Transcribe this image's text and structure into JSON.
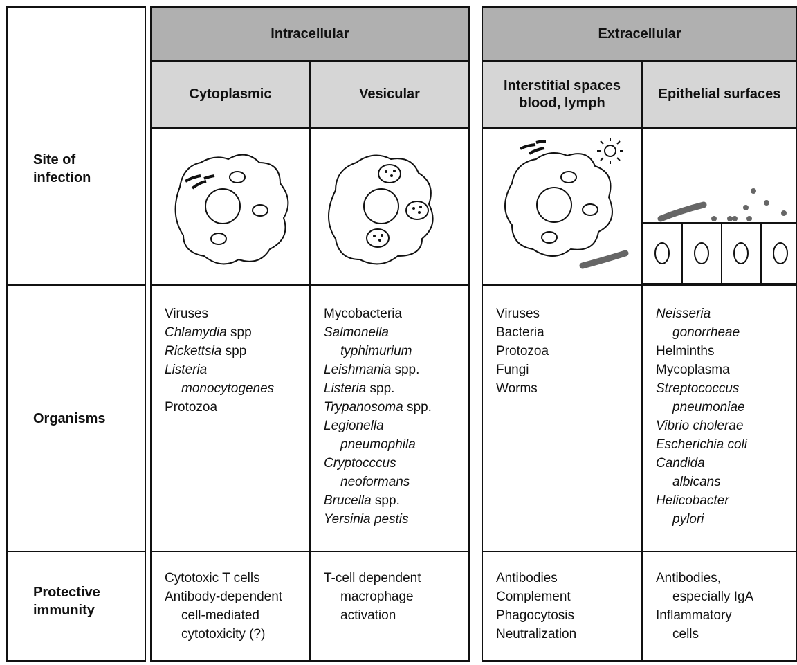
{
  "row_labels": [
    "Site of infection",
    "Organisms",
    "Protective immunity"
  ],
  "groups": [
    {
      "title": "Intracellular",
      "columns": [
        {
          "title": "Cytoplasmic",
          "organisms": [
            {
              "segments": [
                {
                  "text": "Viruses"
                }
              ]
            },
            {
              "segments": [
                {
                  "text": "Chlamydia",
                  "italic": true
                },
                {
                  "text": " spp"
                }
              ]
            },
            {
              "segments": [
                {
                  "text": "Rickettsia",
                  "italic": true
                },
                {
                  "text": " spp"
                }
              ]
            },
            {
              "segments": [
                {
                  "text": "Listeria",
                  "italic": true
                }
              ]
            },
            {
              "indent": true,
              "segments": [
                {
                  "text": "monocytogenes",
                  "italic": true
                }
              ]
            },
            {
              "segments": [
                {
                  "text": "Protozoa"
                }
              ]
            }
          ],
          "immunity": [
            {
              "segments": [
                {
                  "text": "Cytotoxic T cells"
                }
              ]
            },
            {
              "segments": [
                {
                  "text": "Antibody-dependent"
                }
              ]
            },
            {
              "indent": true,
              "segments": [
                {
                  "text": "cell-mediated"
                }
              ]
            },
            {
              "indent": true,
              "segments": [
                {
                  "text": "cytotoxicity (?)"
                }
              ]
            }
          ]
        },
        {
          "title": "Vesicular",
          "organisms": [
            {
              "segments": [
                {
                  "text": "Mycobacteria"
                }
              ]
            },
            {
              "segments": [
                {
                  "text": "Salmonella",
                  "italic": true
                }
              ]
            },
            {
              "indent": true,
              "segments": [
                {
                  "text": "typhimurium",
                  "italic": true
                }
              ]
            },
            {
              "segments": [
                {
                  "text": "Leishmania",
                  "italic": true
                },
                {
                  "text": " spp."
                }
              ]
            },
            {
              "segments": [
                {
                  "text": "Listeria",
                  "italic": true
                },
                {
                  "text": " spp."
                }
              ]
            },
            {
              "segments": [
                {
                  "text": "Trypanosoma",
                  "italic": true
                },
                {
                  "text": " spp."
                }
              ]
            },
            {
              "segments": [
                {
                  "text": "Legionella",
                  "italic": true
                }
              ]
            },
            {
              "indent": true,
              "segments": [
                {
                  "text": "pneumophila",
                  "italic": true
                }
              ]
            },
            {
              "segments": [
                {
                  "text": "Cryptocccus",
                  "italic": true
                }
              ]
            },
            {
              "indent": true,
              "segments": [
                {
                  "text": "neoformans",
                  "italic": true
                }
              ]
            },
            {
              "segments": [
                {
                  "text": "Brucella",
                  "italic": true
                },
                {
                  "text": " spp."
                }
              ]
            },
            {
              "segments": [
                {
                  "text": "Yersinia pestis",
                  "italic": true
                }
              ]
            }
          ],
          "immunity": [
            {
              "segments": [
                {
                  "text": "T-cell dependent"
                }
              ]
            },
            {
              "indent": true,
              "segments": [
                {
                  "text": "macrophage"
                }
              ]
            },
            {
              "indent": true,
              "segments": [
                {
                  "text": "activation"
                }
              ]
            }
          ]
        }
      ]
    },
    {
      "title": "Extracellular",
      "columns": [
        {
          "title": "Interstitial spaces blood, lymph",
          "organisms": [
            {
              "segments": [
                {
                  "text": "Viruses"
                }
              ]
            },
            {
              "segments": [
                {
                  "text": "Bacteria"
                }
              ]
            },
            {
              "segments": [
                {
                  "text": "Protozoa"
                }
              ]
            },
            {
              "segments": [
                {
                  "text": "Fungi"
                }
              ]
            },
            {
              "segments": [
                {
                  "text": "Worms"
                }
              ]
            }
          ],
          "immunity": [
            {
              "segments": [
                {
                  "text": "Antibodies"
                }
              ]
            },
            {
              "segments": [
                {
                  "text": "Complement"
                }
              ]
            },
            {
              "segments": [
                {
                  "text": "Phagocytosis"
                }
              ]
            },
            {
              "segments": [
                {
                  "text": "Neutralization"
                }
              ]
            }
          ]
        },
        {
          "title": "Epithelial surfaces",
          "organisms": [
            {
              "segments": [
                {
                  "text": "Neisseria",
                  "italic": true
                }
              ]
            },
            {
              "indent": true,
              "segments": [
                {
                  "text": "gonorrheae",
                  "italic": true
                }
              ]
            },
            {
              "segments": [
                {
                  "text": "Helminths"
                }
              ]
            },
            {
              "segments": [
                {
                  "text": "Mycoplasma"
                }
              ]
            },
            {
              "segments": [
                {
                  "text": "Streptococcus",
                  "italic": true
                }
              ]
            },
            {
              "indent": true,
              "segments": [
                {
                  "text": "pneumoniae",
                  "italic": true
                }
              ]
            },
            {
              "segments": [
                {
                  "text": "Vibrio cholerae",
                  "italic": true
                }
              ]
            },
            {
              "segments": [
                {
                  "text": "Escherichia coli",
                  "italic": true
                }
              ]
            },
            {
              "segments": [
                {
                  "text": "Candida",
                  "italic": true
                }
              ]
            },
            {
              "indent": true,
              "segments": [
                {
                  "text": "albicans",
                  "italic": true
                }
              ]
            },
            {
              "segments": [
                {
                  "text": "Helicobacter",
                  "italic": true
                }
              ]
            },
            {
              "indent": true,
              "segments": [
                {
                  "text": "pylori",
                  "italic": true
                }
              ]
            }
          ],
          "immunity": [
            {
              "segments": [
                {
                  "text": "Antibodies,"
                }
              ]
            },
            {
              "indent": true,
              "segments": [
                {
                  "text": "especially IgA"
                }
              ]
            },
            {
              "segments": [
                {
                  "text": "Inflammatory"
                }
              ]
            },
            {
              "indent": true,
              "segments": [
                {
                  "text": "cells"
                }
              ]
            }
          ]
        }
      ]
    }
  ]
}
